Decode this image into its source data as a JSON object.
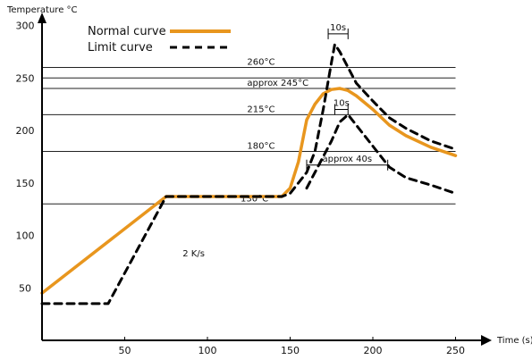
{
  "chart_data": {
    "type": "line",
    "xlabel": "Time (s)",
    "ylabel": "Temperature °C",
    "xlim": [
      0,
      270
    ],
    "ylim": [
      0,
      330
    ],
    "x_ticks": [
      50,
      100,
      150,
      200,
      250
    ],
    "y_ticks": [
      50,
      100,
      150,
      200,
      250,
      300
    ],
    "colors": {
      "normal": "#E8961E",
      "limit": "#000000",
      "text": "#111111"
    },
    "series": [
      {
        "name": "Normal curve",
        "style": "solid",
        "x": [
          0,
          75,
          145,
          150,
          155,
          160,
          165,
          170,
          175,
          180,
          185,
          190,
          200,
          210,
          220,
          235,
          250
        ],
        "y": [
          45,
          137,
          137,
          145,
          170,
          210,
          225,
          235,
          239,
          240,
          238,
          233,
          220,
          205,
          195,
          184,
          176
        ]
      },
      {
        "name": "Limit curve",
        "style": "dashed",
        "x": [
          0,
          40,
          75,
          145,
          150,
          155,
          160,
          165,
          170,
          175,
          177,
          180,
          185,
          190,
          200,
          210,
          220,
          235,
          250
        ],
        "y": [
          35,
          35,
          137,
          137,
          140,
          150,
          160,
          180,
          220,
          265,
          282,
          275,
          260,
          245,
          228,
          212,
          202,
          190,
          182
        ]
      },
      {
        "name": "",
        "style": "dashed",
        "x": [
          160,
          165,
          170,
          175,
          180,
          185,
          190,
          200,
          210,
          220,
          235,
          250
        ],
        "y": [
          145,
          160,
          175,
          190,
          208,
          215,
          205,
          185,
          165,
          155,
          148,
          140
        ]
      }
    ],
    "reference_lines": [
      {
        "y": 260,
        "label": "260°C"
      },
      {
        "y": 250,
        "label": ""
      },
      {
        "y": 240,
        "label": "approx 245°C"
      },
      {
        "y": 215,
        "label": "215°C"
      },
      {
        "y": 180,
        "label": "180°C"
      },
      {
        "y": 130,
        "label": "130°C"
      }
    ],
    "annotations": [
      {
        "text": "10s",
        "x1": 173,
        "x2": 185,
        "y": 292
      },
      {
        "text": "10s",
        "x1": 177,
        "x2": 185,
        "y": 220
      },
      {
        "text": "approx 40s",
        "x1": 160,
        "x2": 209,
        "y": 167
      },
      {
        "text": "2 K/s",
        "x": 85,
        "y": 80
      }
    ],
    "legend_position": "top-left"
  }
}
